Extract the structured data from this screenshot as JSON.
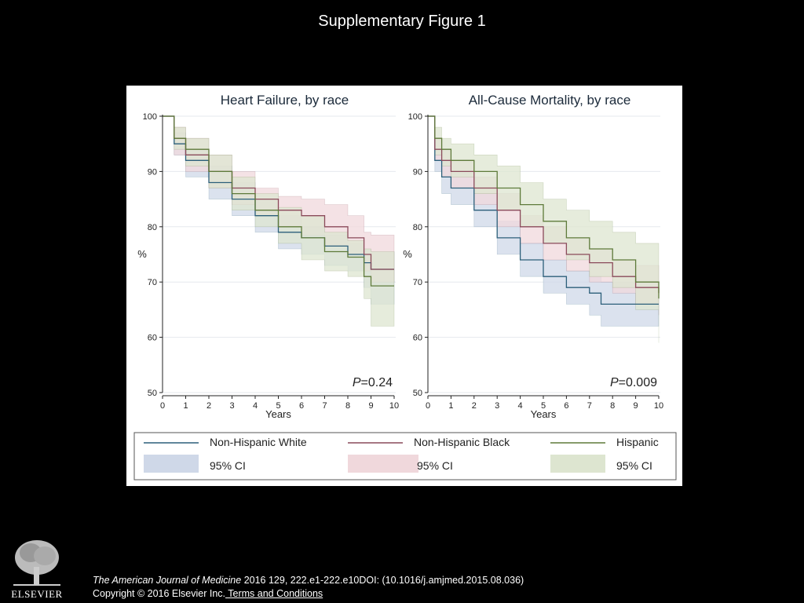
{
  "slide": {
    "title": "Supplementary Figure 1"
  },
  "citation": {
    "journal": "The American Journal of Medicine",
    "details": " 2016 129, 222.e1-222.e10DOI: (10.1016/j.amjmed.2015.08.036)",
    "copyright": "Copyright © 2016 Elsevier Inc.",
    "terms_link": " Terms and Conditions"
  },
  "logo": {
    "text": "ELSEVIER"
  },
  "colors": {
    "white": "#2c5f7a",
    "white_ci": "#cfd8e8",
    "black": "#8a4a5a",
    "black_ci": "#f0d8dc",
    "hispanic": "#5e7a3a",
    "hispanic_ci": "#dde5d0"
  },
  "legend": {
    "entries": [
      {
        "label": "Non-Hispanic White",
        "ci_label": "95% CI"
      },
      {
        "label": "Non-Hispanic Black",
        "ci_label": "95% CI"
      },
      {
        "label": "Hispanic",
        "ci_label": "95% CI"
      }
    ]
  },
  "chart_data": [
    {
      "type": "line",
      "title": "Heart Failure, by race",
      "xlabel": "Years",
      "ylabel": "%",
      "xlim": [
        0,
        10
      ],
      "ylim": [
        50,
        100
      ],
      "xticks": [
        "0",
        "1",
        "2",
        "3",
        "4",
        "5",
        "6",
        "7",
        "8",
        "9",
        "10"
      ],
      "yticks": [
        "50",
        "60",
        "70",
        "80",
        "90",
        "100"
      ],
      "grid": true,
      "annotation_p": "P",
      "annotation_value": "=0.24",
      "series": [
        {
          "name": "Non-Hispanic White",
          "x": [
            0,
            0.5,
            1,
            2,
            3,
            4,
            5,
            6,
            7,
            8,
            8.7,
            9,
            10
          ],
          "y": [
            100,
            95,
            92,
            88,
            85,
            82,
            79,
            78,
            76.5,
            75,
            73.5,
            72.3,
            72.3
          ],
          "ci_upper": [
            100,
            97,
            94,
            91,
            88,
            85,
            82,
            80,
            78.5,
            77,
            76,
            75.5,
            75.5
          ],
          "ci_lower": [
            100,
            93,
            89,
            85,
            82,
            79,
            76,
            75,
            73,
            72,
            69,
            66,
            66
          ]
        },
        {
          "name": "Non-Hispanic Black",
          "x": [
            0,
            0.5,
            1,
            2,
            3,
            4,
            5,
            6,
            7,
            8,
            8.7,
            9,
            10
          ],
          "y": [
            100,
            96,
            93,
            90,
            87,
            85,
            83,
            82,
            80,
            78,
            75,
            72.3,
            72.3
          ],
          "ci_upper": [
            100,
            98,
            96,
            93,
            90,
            87,
            85.5,
            85,
            84,
            82,
            79,
            78.5,
            78.5
          ],
          "ci_lower": [
            100,
            93,
            90,
            87,
            84,
            82,
            80,
            78.5,
            76.5,
            75,
            72,
            70,
            70
          ]
        },
        {
          "name": "Hispanic",
          "x": [
            0,
            0.5,
            1,
            2,
            3,
            4,
            5,
            6,
            7,
            8,
            8.7,
            9,
            10
          ],
          "y": [
            100,
            96,
            94,
            90,
            86,
            83,
            80,
            78,
            75.5,
            74.5,
            71,
            69.3,
            69.3
          ],
          "ci_upper": [
            100,
            98,
            96,
            93,
            89,
            86,
            83.5,
            82,
            79,
            77.5,
            76,
            75.5,
            75.5
          ],
          "ci_lower": [
            100,
            94,
            91,
            87,
            83,
            80,
            77,
            74,
            72,
            71,
            67,
            62,
            62
          ]
        }
      ]
    },
    {
      "type": "line",
      "title": "All-Cause Mortality, by race",
      "xlabel": "Years",
      "ylabel": "%",
      "xlim": [
        0,
        10
      ],
      "ylim": [
        50,
        100
      ],
      "xticks": [
        "0",
        "1",
        "2",
        "3",
        "4",
        "5",
        "6",
        "7",
        "8",
        "9",
        "10"
      ],
      "yticks": [
        "50",
        "60",
        "70",
        "80",
        "90",
        "100"
      ],
      "grid": true,
      "annotation_p": "P",
      "annotation_value": "=0.009",
      "series": [
        {
          "name": "Non-Hispanic White",
          "x": [
            0,
            0.3,
            0.6,
            1,
            2,
            3,
            4,
            5,
            6,
            7,
            7.5,
            8,
            9,
            10
          ],
          "y": [
            100,
            92,
            89,
            87,
            83,
            78,
            74,
            71,
            69,
            68,
            66,
            66,
            66,
            66
          ],
          "ci_upper": [
            100,
            94,
            92,
            90,
            86,
            81,
            77,
            74,
            72,
            71,
            70,
            70,
            70,
            70
          ],
          "ci_lower": [
            100,
            90,
            86,
            84,
            80,
            75,
            71,
            68,
            66,
            64,
            62,
            62,
            62,
            62
          ]
        },
        {
          "name": "Non-Hispanic Black",
          "x": [
            0,
            0.3,
            0.6,
            1,
            2,
            3,
            4,
            5,
            6,
            7,
            8,
            9,
            10
          ],
          "y": [
            100,
            94,
            92,
            90,
            87,
            83,
            80,
            77,
            75,
            73.5,
            71,
            69,
            68
          ],
          "ci_upper": [
            100,
            96,
            94,
            92,
            89,
            86,
            82,
            80,
            78,
            76,
            74,
            73,
            72
          ],
          "ci_lower": [
            100,
            92,
            89,
            87,
            84,
            80,
            77,
            74,
            72,
            70,
            68,
            66,
            64
          ]
        },
        {
          "name": "Hispanic",
          "x": [
            0,
            0.3,
            0.6,
            1,
            2,
            3,
            4,
            5,
            6,
            7,
            8,
            9,
            10
          ],
          "y": [
            100,
            96,
            94,
            92,
            90,
            87,
            84,
            81,
            78,
            76,
            74,
            70,
            67
          ],
          "ci_upper": [
            100,
            98,
            96,
            95,
            93,
            91,
            88,
            85,
            83,
            81,
            79,
            77,
            74
          ],
          "ci_lower": [
            100,
            93,
            91,
            89,
            86,
            83,
            80,
            77,
            74,
            71,
            69,
            65,
            59
          ]
        }
      ]
    }
  ]
}
